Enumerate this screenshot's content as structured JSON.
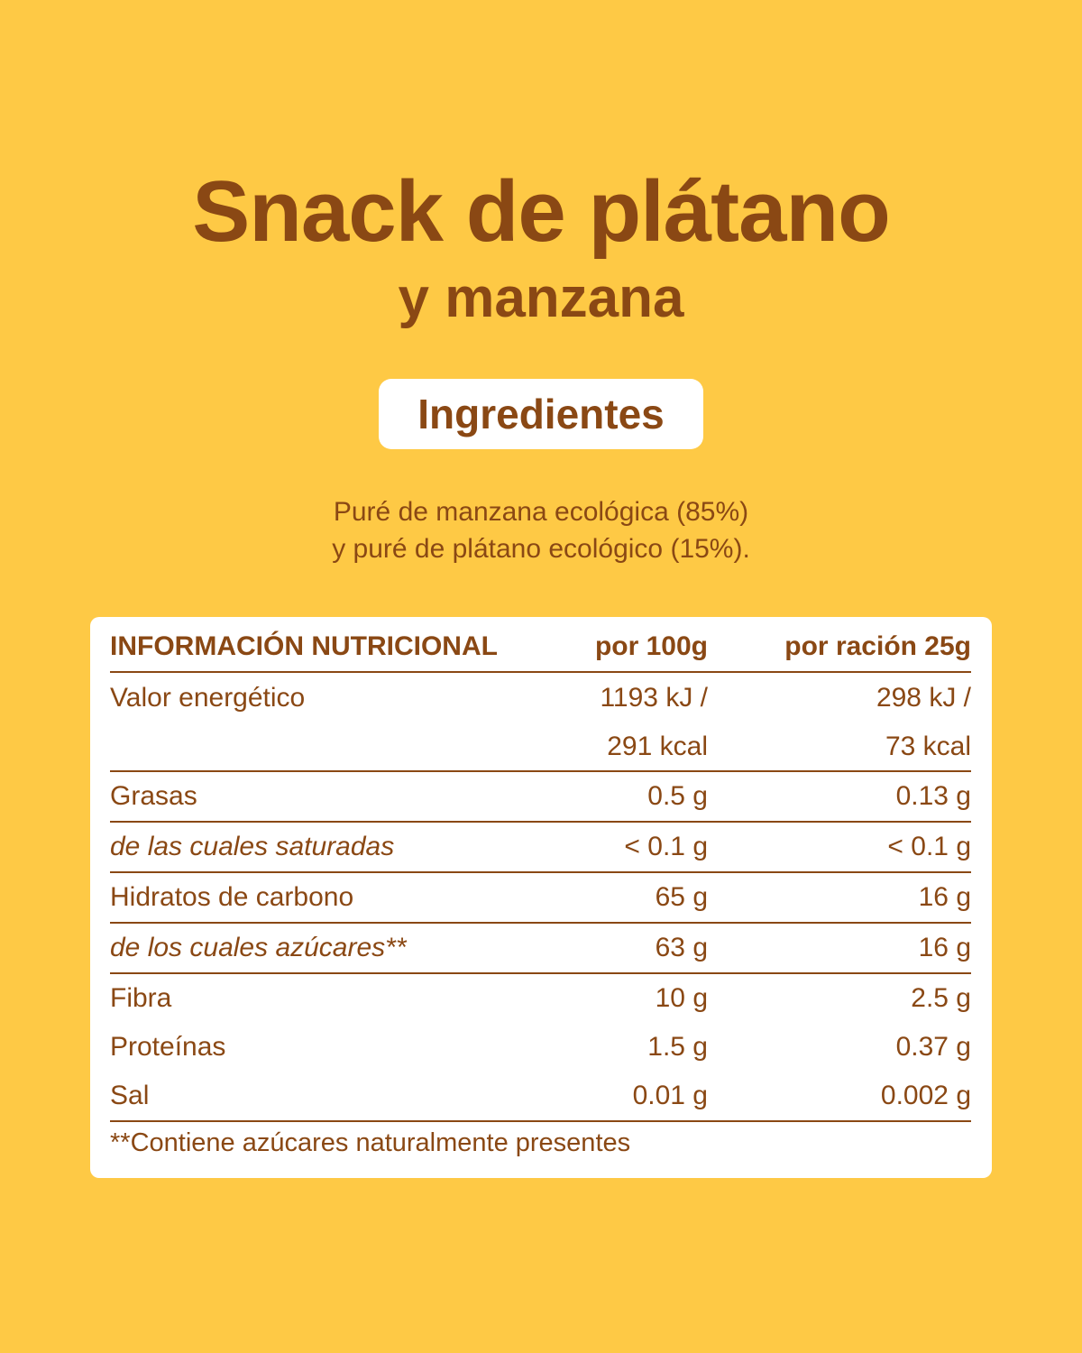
{
  "header": {
    "title": "Snack de plátano",
    "subtitle": "y manzana"
  },
  "ingredients": {
    "heading": "Ingredientes",
    "lines": [
      "Puré de manzana ecológica (85%)",
      "y puré de plátano ecológico (15%)."
    ]
  },
  "table": {
    "header": [
      "INFORMACIÓN NUTRICIONAL",
      "por 100g",
      "por ración 25g"
    ],
    "rows": [
      [
        "Valor energético",
        [
          "1193 kJ /",
          "291 kcal"
        ],
        [
          "298 kJ /",
          "73 kcal"
        ]
      ],
      [
        "Grasas",
        "0.5 g",
        "0.13 g"
      ],
      [
        "de las cuales saturadas",
        "< 0.1 g",
        "< 0.1 g"
      ],
      [
        "Hidratos de carbono",
        "65 g",
        "16 g"
      ],
      [
        "de los cuales azúcares**",
        "63 g",
        "16 g"
      ],
      [
        "Fibra",
        "10 g",
        "2.5 g"
      ],
      [
        "Proteínas",
        "1.5 g",
        "0.37 g"
      ],
      [
        "Sal",
        "0.01 g",
        "0.002 g"
      ]
    ],
    "footnote": "**Contiene azúcares naturalmente presentes"
  }
}
